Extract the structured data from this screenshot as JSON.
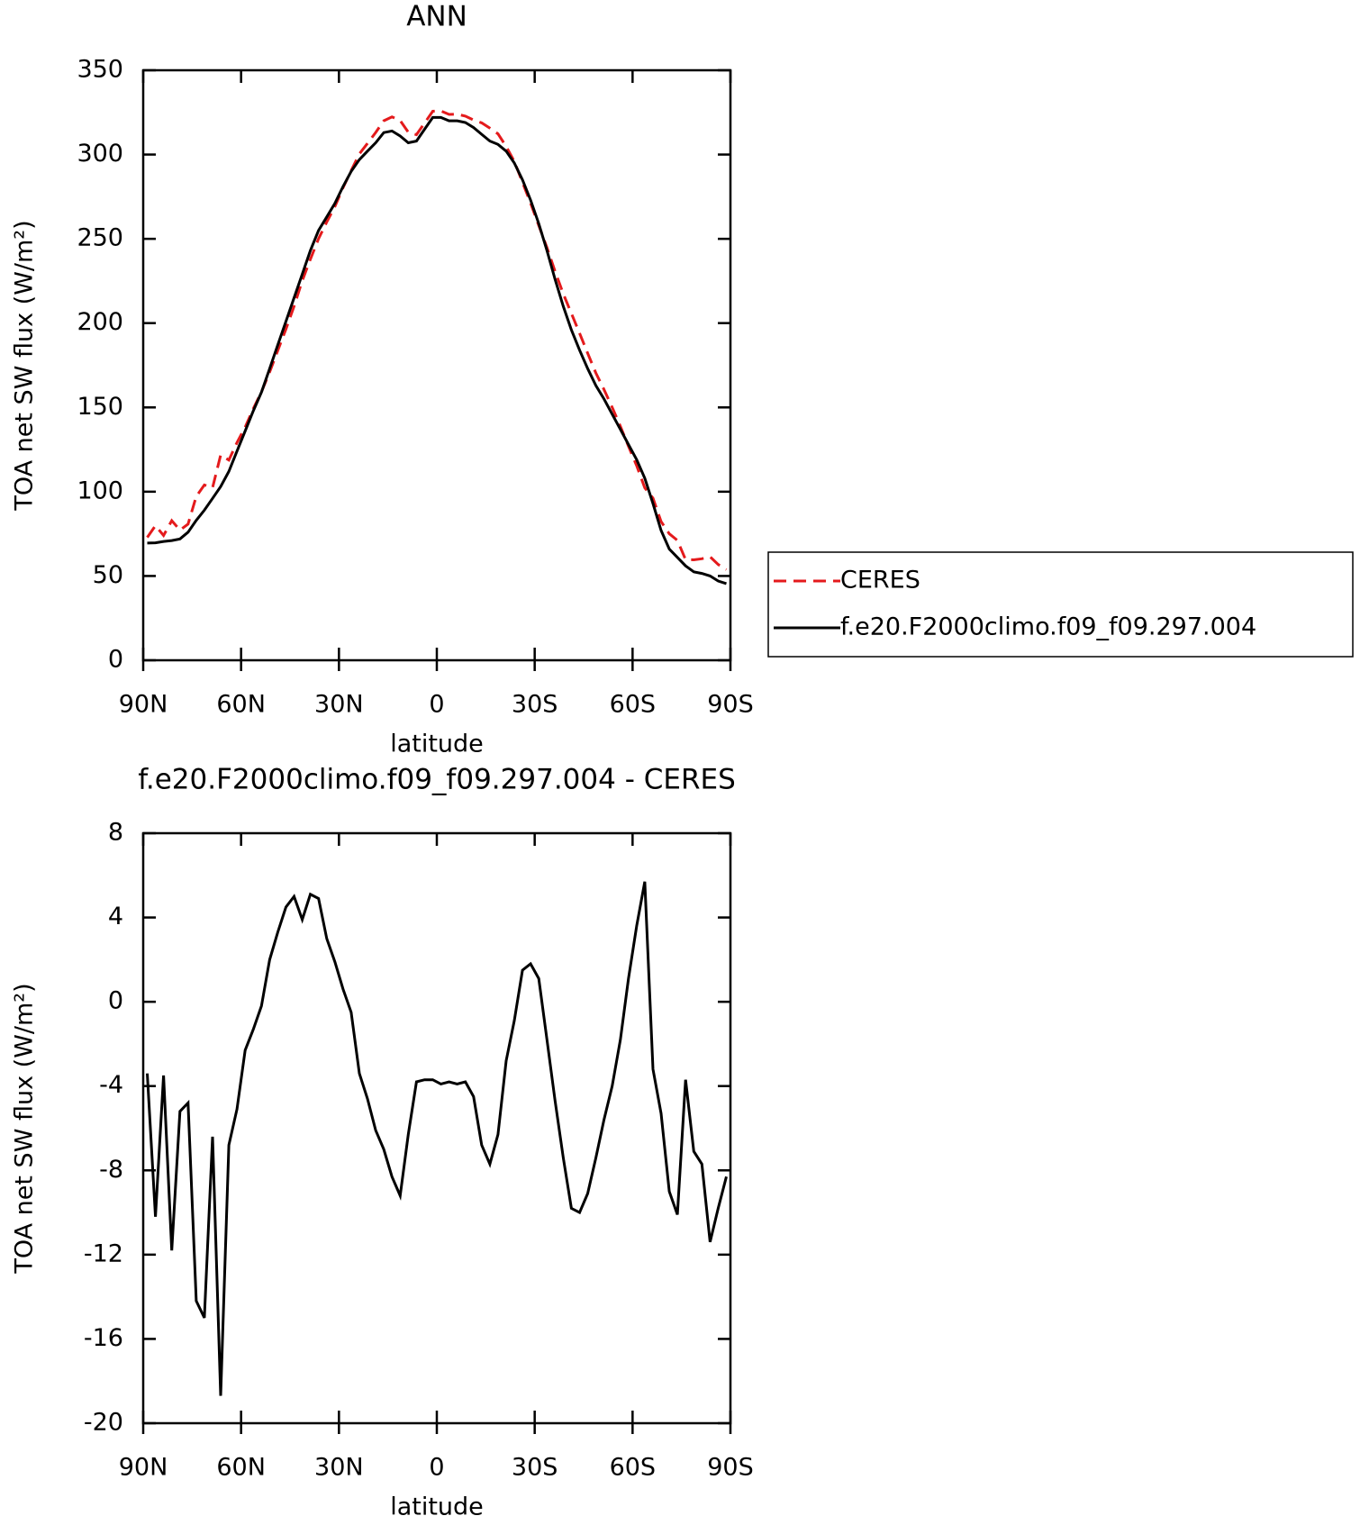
{
  "chart_data": [
    {
      "type": "line",
      "title": "ANN",
      "xlabel": "latitude",
      "ylabel": "TOA net SW flux (W/m²)",
      "x": [
        88.75,
        86.25,
        83.75,
        81.25,
        78.75,
        76.25,
        73.75,
        71.25,
        68.75,
        66.25,
        63.75,
        61.25,
        58.75,
        56.25,
        53.75,
        51.25,
        48.75,
        46.25,
        43.75,
        41.25,
        38.75,
        36.25,
        33.75,
        31.25,
        28.75,
        26.25,
        23.75,
        21.25,
        18.75,
        16.25,
        13.75,
        11.25,
        8.75,
        6.25,
        3.75,
        1.25,
        -1.25,
        -3.75,
        -6.25,
        -8.75,
        -11.25,
        -13.75,
        -16.25,
        -18.75,
        -21.25,
        -23.75,
        -26.25,
        -28.75,
        -31.25,
        -33.75,
        -36.25,
        -38.75,
        -41.25,
        -43.75,
        -46.25,
        -48.75,
        -51.25,
        -53.75,
        -56.25,
        -58.75,
        -61.25,
        -63.75,
        -66.25,
        -68.75,
        -71.25,
        -73.75,
        -76.25,
        -78.75,
        -81.25,
        -83.75,
        -86.25,
        -88.75
      ],
      "series": [
        {
          "name": "CERES",
          "color": "#e41a1c",
          "linestyle": "dashed",
          "values": [
            72.9,
            79.9,
            74,
            82.8,
            77.2,
            80.8,
            97.2,
            104,
            102.4,
            121.7,
            118.8,
            129.1,
            138.3,
            149.3,
            159.2,
            171,
            183.7,
            196.5,
            210,
            225.1,
            237.9,
            250.1,
            260,
            269.1,
            280.4,
            290.5,
            300.4,
            306.6,
            313.1,
            320,
            322.3,
            320.2,
            313.3,
            311.8,
            318.7,
            325.7,
            325.9,
            323.8,
            323.9,
            322.8,
            320.5,
            318.8,
            315.7,
            312.3,
            304.8,
            295.9,
            283.5,
            271.2,
            257.9,
            244.8,
            230.7,
            217.4,
            205.8,
            194,
            182.1,
            170.4,
            160.6,
            150,
            138.8,
            126.9,
            115.4,
            102.3,
            96.2,
            82.3,
            75,
            71.1,
            59.7,
            59.6,
            60.2,
            61.4,
            56.8,
            53.8
          ]
        },
        {
          "name": "f.e20.F2000climo.f09_f09.297.004",
          "color": "#000000",
          "linestyle": "solid",
          "values": [
            69.5,
            69.7,
            70.5,
            71,
            72,
            76,
            83,
            89,
            96,
            103,
            112,
            124,
            136,
            148,
            159,
            173,
            187,
            201,
            215,
            229,
            243,
            255,
            263,
            271,
            281,
            290,
            297,
            302,
            307,
            313,
            314,
            311,
            307,
            308,
            315,
            322,
            322,
            320,
            320,
            319,
            316,
            312,
            308,
            306,
            302,
            295,
            285,
            273,
            259,
            243,
            226,
            210,
            196,
            184,
            173,
            163,
            155,
            146,
            137,
            128,
            119,
            108,
            93,
            77,
            66,
            61,
            56,
            52.5,
            51.5,
            50,
            47,
            45.5
          ]
        }
      ],
      "xlim": [
        90,
        -90
      ],
      "ylim": [
        0,
        350
      ],
      "xticks": [
        {
          "value": 90,
          "label": "90N"
        },
        {
          "value": 60,
          "label": "60N"
        },
        {
          "value": 30,
          "label": "30N"
        },
        0,
        {
          "value": -30,
          "label": "30S"
        },
        {
          "value": -60,
          "label": "60S"
        },
        {
          "value": -90,
          "label": "90S"
        }
      ],
      "yticks": [
        0,
        50,
        100,
        150,
        200,
        250,
        300,
        350
      ],
      "legend": "right"
    },
    {
      "type": "line",
      "title": "f.e20.F2000climo.f09_f09.297.004 - CERES",
      "xlabel": "latitude",
      "ylabel": "TOA net SW flux (W/m²)",
      "x": [
        88.75,
        86.25,
        83.75,
        81.25,
        78.75,
        76.25,
        73.75,
        71.25,
        68.75,
        66.25,
        63.75,
        61.25,
        58.75,
        56.25,
        53.75,
        51.25,
        48.75,
        46.25,
        43.75,
        41.25,
        38.75,
        36.25,
        33.75,
        31.25,
        28.75,
        26.25,
        23.75,
        21.25,
        18.75,
        16.25,
        13.75,
        11.25,
        8.75,
        6.25,
        3.75,
        1.25,
        -1.25,
        -3.75,
        -6.25,
        -8.75,
        -11.25,
        -13.75,
        -16.25,
        -18.75,
        -21.25,
        -23.75,
        -26.25,
        -28.75,
        -31.25,
        -33.75,
        -36.25,
        -38.75,
        -41.25,
        -43.75,
        -46.25,
        -48.75,
        -51.25,
        -53.75,
        -56.25,
        -58.75,
        -61.25,
        -63.75,
        -66.25,
        -68.75,
        -71.25,
        -73.75,
        -76.25,
        -78.75,
        -81.25,
        -83.75,
        -86.25,
        -88.75
      ],
      "series": [
        {
          "color": "#000000",
          "linestyle": "solid",
          "values": [
            -3.4,
            -10.2,
            -3.5,
            -11.8,
            -5.2,
            -4.8,
            -14.2,
            -15,
            -6.4,
            -18.7,
            -6.8,
            -5.1,
            -2.3,
            -1.3,
            -0.2,
            2,
            3.3,
            4.5,
            5,
            3.9,
            5.1,
            4.9,
            3,
            1.9,
            0.6,
            -0.5,
            -3.4,
            -4.6,
            -6.1,
            -7,
            -8.3,
            -9.2,
            -6.3,
            -3.8,
            -3.7,
            -3.7,
            -3.9,
            -3.8,
            -3.9,
            -3.8,
            -4.5,
            -6.8,
            -7.7,
            -6.3,
            -2.8,
            -0.9,
            1.5,
            1.8,
            1.1,
            -1.8,
            -4.7,
            -7.4,
            -9.8,
            -10,
            -9.1,
            -7.4,
            -5.6,
            -4,
            -1.8,
            1.1,
            3.6,
            5.7,
            -3.2,
            -5.3,
            -9,
            -10.1,
            -3.7,
            -7.1,
            -7.7,
            -11.4,
            -9.8,
            -8.3
          ]
        }
      ],
      "xlim": [
        90,
        -90
      ],
      "ylim": [
        -20,
        8
      ],
      "xticks": [
        {
          "value": 90,
          "label": "90N"
        },
        {
          "value": 60,
          "label": "60N"
        },
        {
          "value": 30,
          "label": "30N"
        },
        0,
        {
          "value": -30,
          "label": "30S"
        },
        {
          "value": -60,
          "label": "60S"
        },
        {
          "value": -90,
          "label": "90S"
        }
      ],
      "yticks": [
        -20,
        -16,
        -12,
        -8,
        -4,
        0,
        4,
        8
      ]
    }
  ]
}
